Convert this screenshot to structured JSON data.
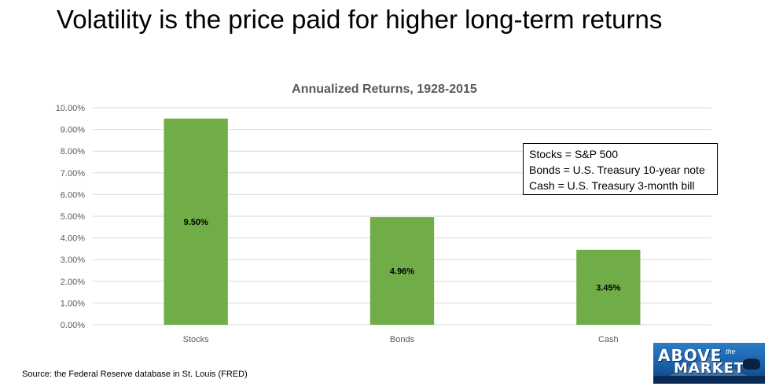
{
  "page": {
    "headline": "Volatility is the price paid for higher long-term returns",
    "source": "Source: the Federal Reserve database in St. Louis (FRED)"
  },
  "chart_data": {
    "type": "bar",
    "title": "Annualized Returns, 1928-2015",
    "categories": [
      "Stocks",
      "Bonds",
      "Cash"
    ],
    "values": [
      9.5,
      4.96,
      3.45
    ],
    "value_labels": [
      "9.50%",
      "4.96%",
      "3.45%"
    ],
    "ylim": [
      0,
      10
    ],
    "yticks": [
      0,
      1,
      2,
      3,
      4,
      5,
      6,
      7,
      8,
      9,
      10
    ],
    "ytick_labels": [
      "0.00%",
      "1.00%",
      "2.00%",
      "3.00%",
      "4.00%",
      "5.00%",
      "6.00%",
      "7.00%",
      "8.00%",
      "9.00%",
      "10.00%"
    ],
    "grid": true,
    "bar_color": "#70ad47",
    "grid_color": "#d9d9d9"
  },
  "note_box": {
    "lines": [
      "Stocks = S&P 500",
      "Bonds = U.S. Treasury 10-year note",
      "Cash = U.S. Treasury 3-month bill"
    ]
  },
  "logo": {
    "top_text": "ABOVE",
    "the_text": "the",
    "bottom_text": "MARKET",
    "background_color": "#1a5fa8"
  }
}
